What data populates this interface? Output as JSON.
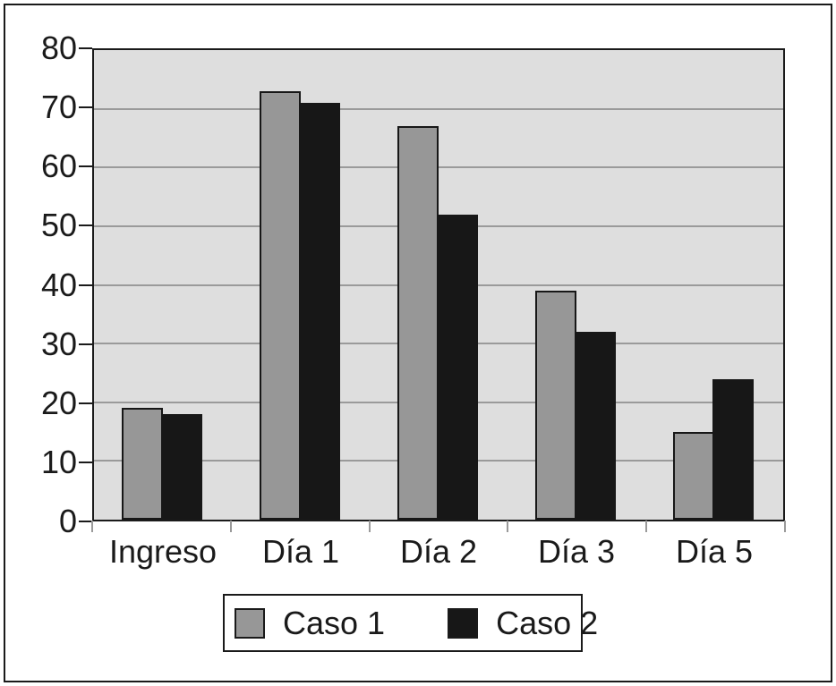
{
  "figure": {
    "background": "#ffffff",
    "frame_border_color": "#1a1a1a"
  },
  "chart_data": {
    "type": "bar",
    "title": "",
    "xlabel": "",
    "ylabel": "",
    "categories": [
      "Ingreso",
      "Día 1",
      "Día 2",
      "Día 3",
      "Día 5"
    ],
    "series": [
      {
        "name": "Caso 1",
        "color": "#979797",
        "values": [
          19,
          73,
          67,
          39,
          15
        ]
      },
      {
        "name": "Caso 2",
        "color": "#171717",
        "values": [
          18,
          71,
          52,
          32,
          24
        ]
      }
    ],
    "ylim": [
      0,
      80
    ],
    "yticks": [
      0,
      10,
      20,
      30,
      40,
      50,
      60,
      70,
      80
    ],
    "grid": true,
    "legend_position": "bottom",
    "plot_background": "#dedede",
    "gridline_color": "#9a9a9a",
    "axis_color": "#1a1a1a",
    "bar_border_color": "#171717",
    "tick_mark_color_y": "#1a1a1a",
    "tick_mark_color_x": "#9a9a9a"
  }
}
